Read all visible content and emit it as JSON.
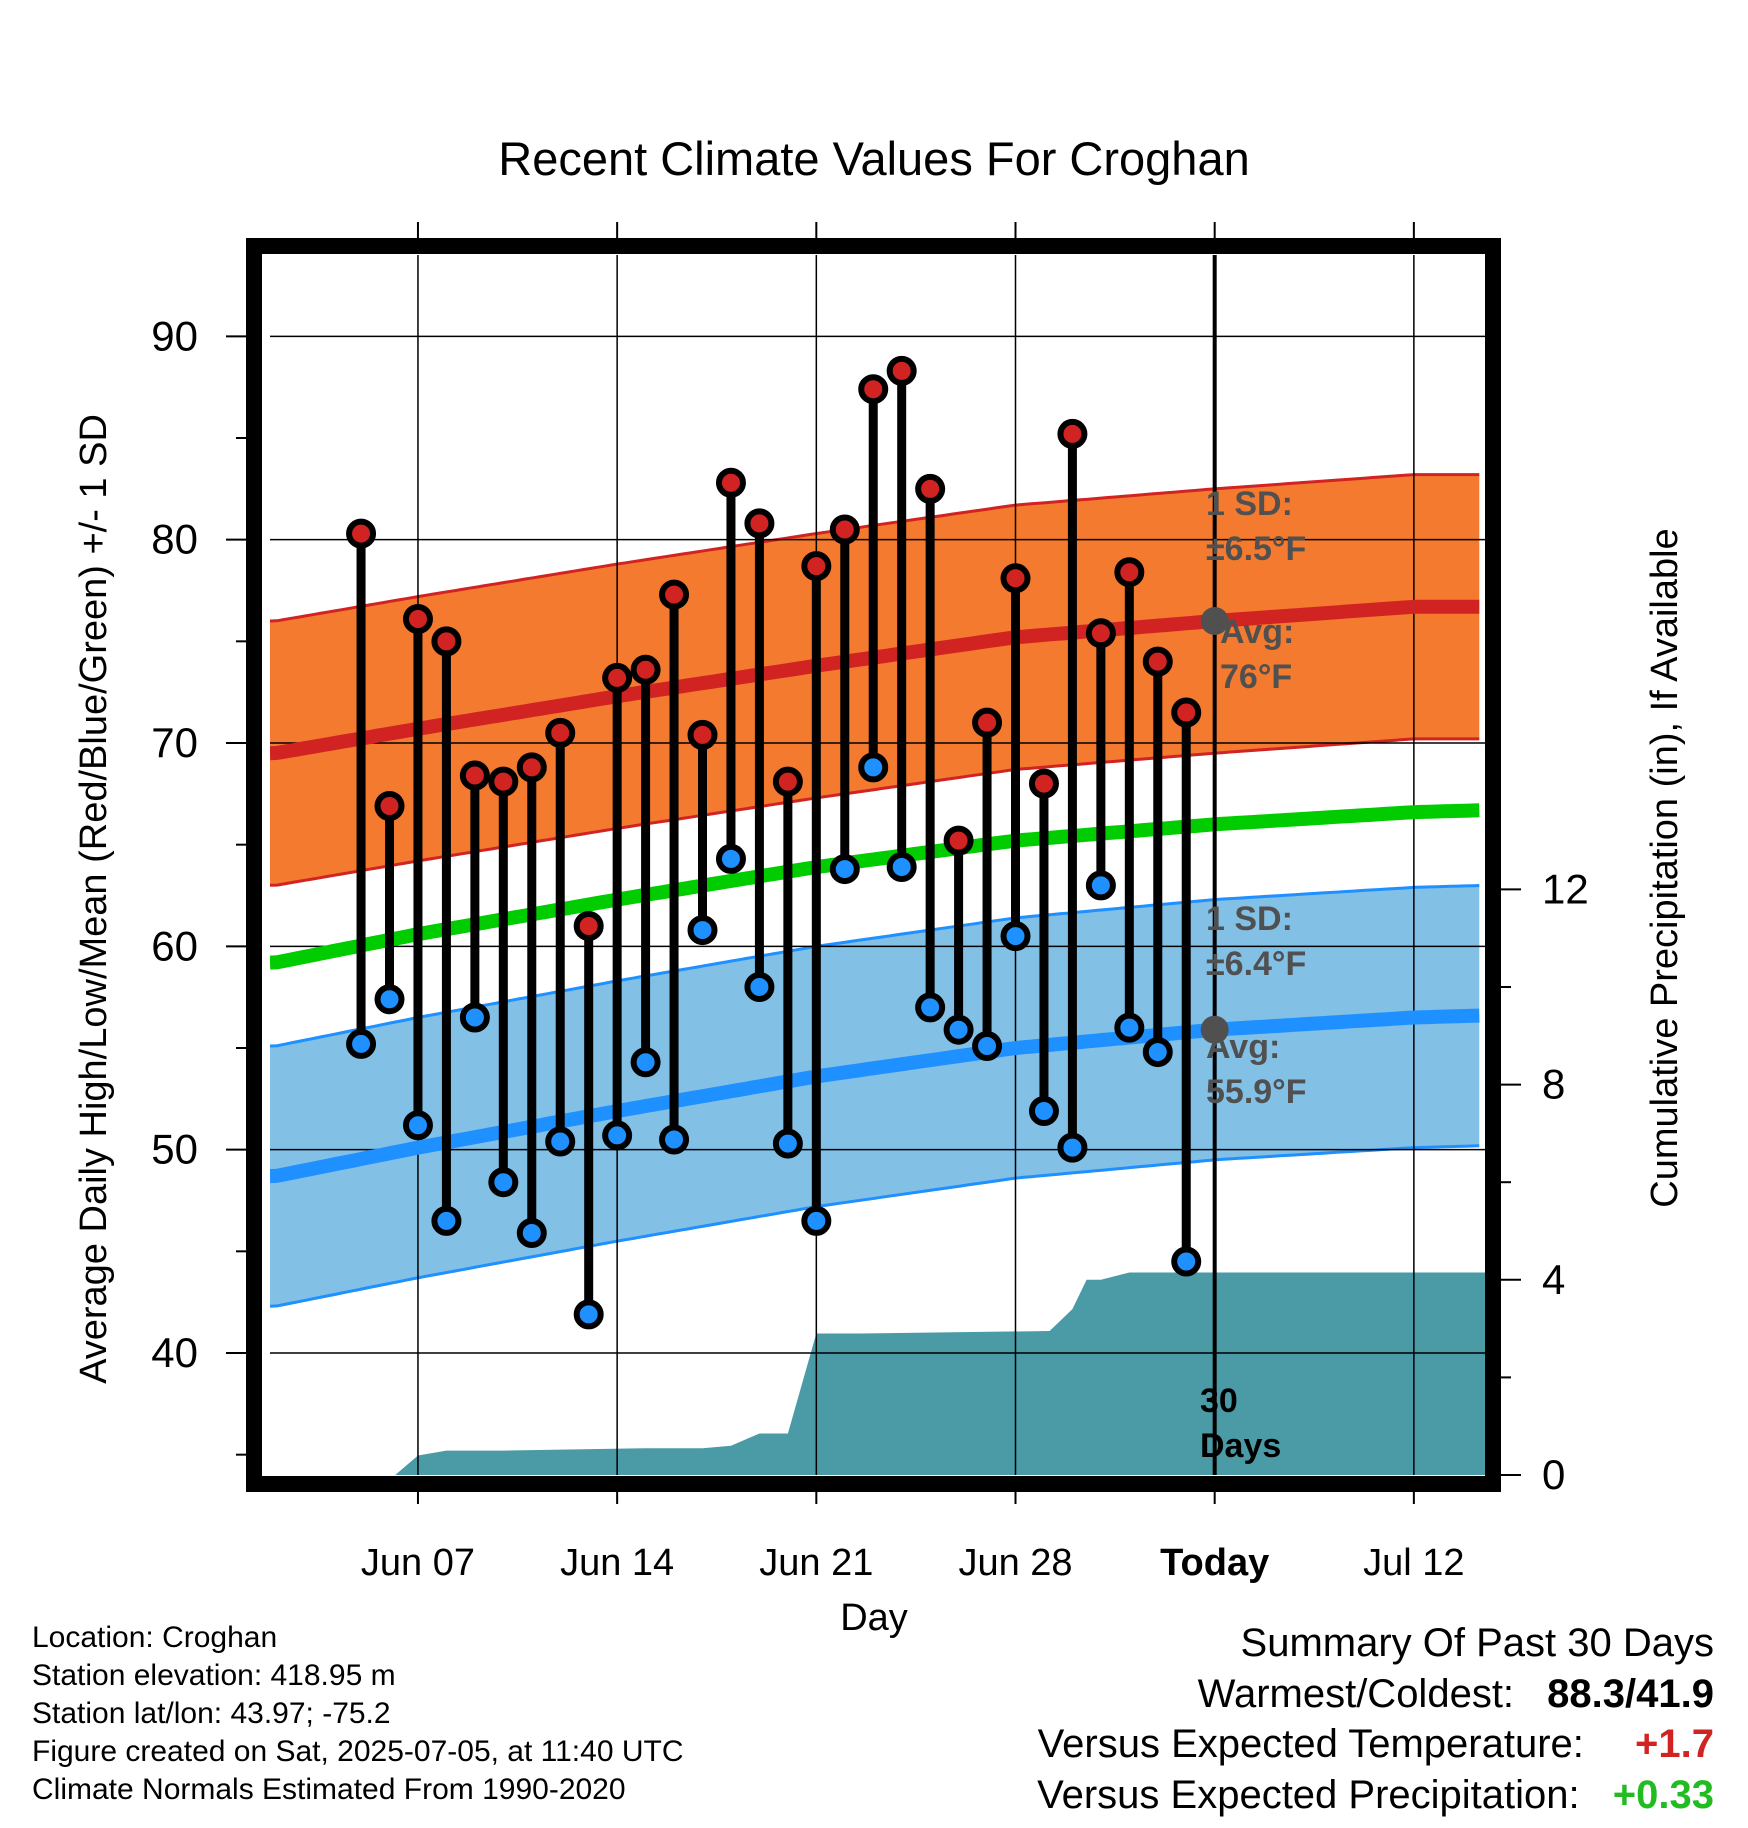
{
  "chart_data": {
    "type": "line",
    "title": "Recent Climate Values For Croghan",
    "xlabel": "Day",
    "ylabel_left": "Average Daily High/Low/Mean (Red/Blue/Green) +/- 1 SD",
    "ylabel_right": "Cumulative Precipitation (in), If Available",
    "x_ticks": [
      "Jun 07",
      "Jun 14",
      "Jun 21",
      "Jun 28",
      "Today",
      "Jul 12"
    ],
    "y_left_ticks": [
      "90",
      "80",
      "70",
      "60",
      "50",
      "40"
    ],
    "y_right_ticks": [
      "12",
      "8",
      "4",
      "0"
    ],
    "y_left_range": [
      34,
      94
    ],
    "y_right_range": [
      0,
      25
    ],
    "x_range_days": [
      -33.2,
      9.5
    ],
    "days_before_today": [
      -30,
      -29,
      -28,
      -27,
      -26,
      -25,
      -24,
      -23,
      -22,
      -21,
      -20,
      -19,
      -18,
      -17,
      -16,
      -15,
      -14,
      -13,
      -12,
      -11,
      -10,
      -9,
      -8,
      -7,
      -6,
      -5,
      -4,
      -3,
      -2,
      -1
    ],
    "daily_high": [
      80.3,
      66.9,
      76.1,
      75.0,
      68.4,
      68.1,
      68.8,
      70.5,
      61.0,
      73.2,
      73.6,
      77.3,
      70.4,
      82.8,
      80.8,
      68.1,
      78.7,
      80.5,
      87.4,
      88.3,
      82.5,
      65.2,
      71.0,
      78.1,
      68.0,
      85.2,
      75.4,
      78.4,
      74.0,
      71.5
    ],
    "daily_low": [
      55.2,
      57.4,
      51.2,
      46.5,
      56.5,
      48.4,
      45.9,
      50.4,
      41.9,
      50.7,
      54.3,
      50.5,
      60.8,
      64.3,
      58.0,
      50.3,
      46.5,
      63.8,
      68.8,
      63.9,
      57.0,
      55.9,
      55.1,
      60.5,
      51.9,
      50.1,
      63.0,
      56.0,
      54.8,
      44.5
    ],
    "normal_high": {
      "x": [
        -33,
        -28,
        -21,
        -14,
        -7,
        0,
        7,
        9.5
      ],
      "values": [
        69.5,
        70.7,
        72.3,
        73.8,
        75.2,
        76.0,
        76.7,
        76.7
      ]
    },
    "normal_high_sd_band": {
      "sd": 6.5
    },
    "normal_low": {
      "x": [
        -33,
        -28,
        -21,
        -14,
        -7,
        0,
        7,
        9.5
      ],
      "values": [
        48.7,
        50.1,
        51.9,
        53.6,
        55.0,
        55.9,
        56.5,
        56.6
      ]
    },
    "normal_low_sd_band": {
      "sd": 6.4
    },
    "normal_mean": {
      "x": [
        -33,
        -28,
        -21,
        -14,
        -7,
        0,
        7,
        9.5
      ],
      "values": [
        59.2,
        60.6,
        62.3,
        63.9,
        65.2,
        66.0,
        66.6,
        66.7
      ]
    },
    "cumulative_precip": {
      "x": [
        -33.2,
        -28.8,
        -28,
        -27,
        -25,
        -20,
        -18,
        -17,
        -16,
        -15,
        -14,
        -13,
        -12.5,
        -5.8,
        -5,
        -4.5,
        -4,
        -3,
        -2,
        0,
        9.5
      ],
      "values": [
        0,
        0,
        0.4,
        0.5,
        0.5,
        0.55,
        0.55,
        0.6,
        0.85,
        0.85,
        2.9,
        2.9,
        2.9,
        2.95,
        3.4,
        4.0,
        4.0,
        4.15,
        4.15,
        4.15,
        4.15
      ]
    },
    "annotations": {
      "high_sd_title": "1 SD:",
      "high_sd_value": "±6.5°F",
      "high_avg_title": "Avg:",
      "high_avg_value": "76°F",
      "high_avg": 76,
      "low_sd_title": "1 SD:",
      "low_sd_value": "±6.4°F",
      "low_avg_title": "Avg:",
      "low_avg_value": "55.9°F",
      "low_avg": 55.9,
      "period_num": "30",
      "period_unit": "Days"
    },
    "colors": {
      "high_band": "#f37a2f",
      "high_line": "#d22323",
      "low_band": "#82c0e6",
      "low_line": "#1e90ff",
      "mean_line": "#00cc00",
      "precip": "#4a9ba6",
      "avg_marker": "#505050",
      "annotation_text": "#505050"
    },
    "grid": true
  },
  "info": {
    "location": "Location: Croghan",
    "elevation": "Station elevation: 418.95 m",
    "latlon": "Station lat/lon: 43.97; -75.2",
    "created": "Figure created on Sat, 2025-07-05, at 11:40 UTC",
    "normals": "Climate Normals Estimated From 1990-2020"
  },
  "summary": {
    "title": "Summary Of Past 30 Days",
    "warm_cold_label": "Warmest/Coldest:",
    "warm_cold_value": "88.3/41.9",
    "temp_label": "Versus Expected Temperature:",
    "temp_value": "+1.7",
    "precip_label": "Versus Expected Precipitation:",
    "precip_value": "+0.33"
  }
}
